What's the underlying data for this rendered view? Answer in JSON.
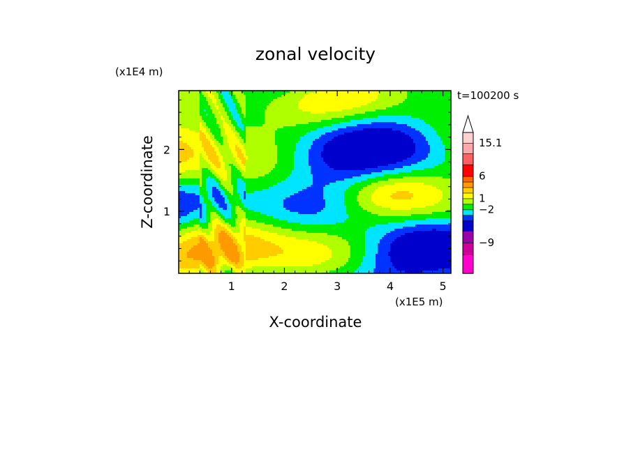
{
  "chart_data": {
    "type": "heatmap",
    "title": "zonal velocity",
    "xlabel": "X-coordinate",
    "ylabel": "Z-coordinate",
    "x_unit": "(x1E5 m)",
    "y_unit": "(x1E4 m)",
    "time_label": "t=100200 s",
    "xlim": [
      0,
      5.15
    ],
    "ylim": [
      0,
      2.95
    ],
    "x_ticks": [
      1,
      2,
      3,
      4,
      5
    ],
    "y_ticks": [
      1,
      2
    ],
    "colorbar": {
      "ticks": [
        "15.1",
        "6",
        "1",
        "−2",
        "−9"
      ],
      "tick_values": [
        15.1,
        6,
        1,
        -2,
        -9
      ],
      "colors": [
        "#ff00cc",
        "#cc0099",
        "#9900aa",
        "#0000cc",
        "#0033ff",
        "#00e5ff",
        "#00ee00",
        "#b0ff00",
        "#ffff00",
        "#ffcc00",
        "#ff9900",
        "#ff6600",
        "#ff0000",
        "#ff6060",
        "#ffaaaa",
        "#ffd0d0"
      ],
      "extend": "max"
    },
    "palette_order_low_to_high": [
      "#ff00cc",
      "#cc0099",
      "#9900aa",
      "#0000cc",
      "#0033ff",
      "#00e5ff",
      "#00ee00",
      "#b0ff00",
      "#ffff00",
      "#ffcc00",
      "#ff9900"
    ]
  }
}
